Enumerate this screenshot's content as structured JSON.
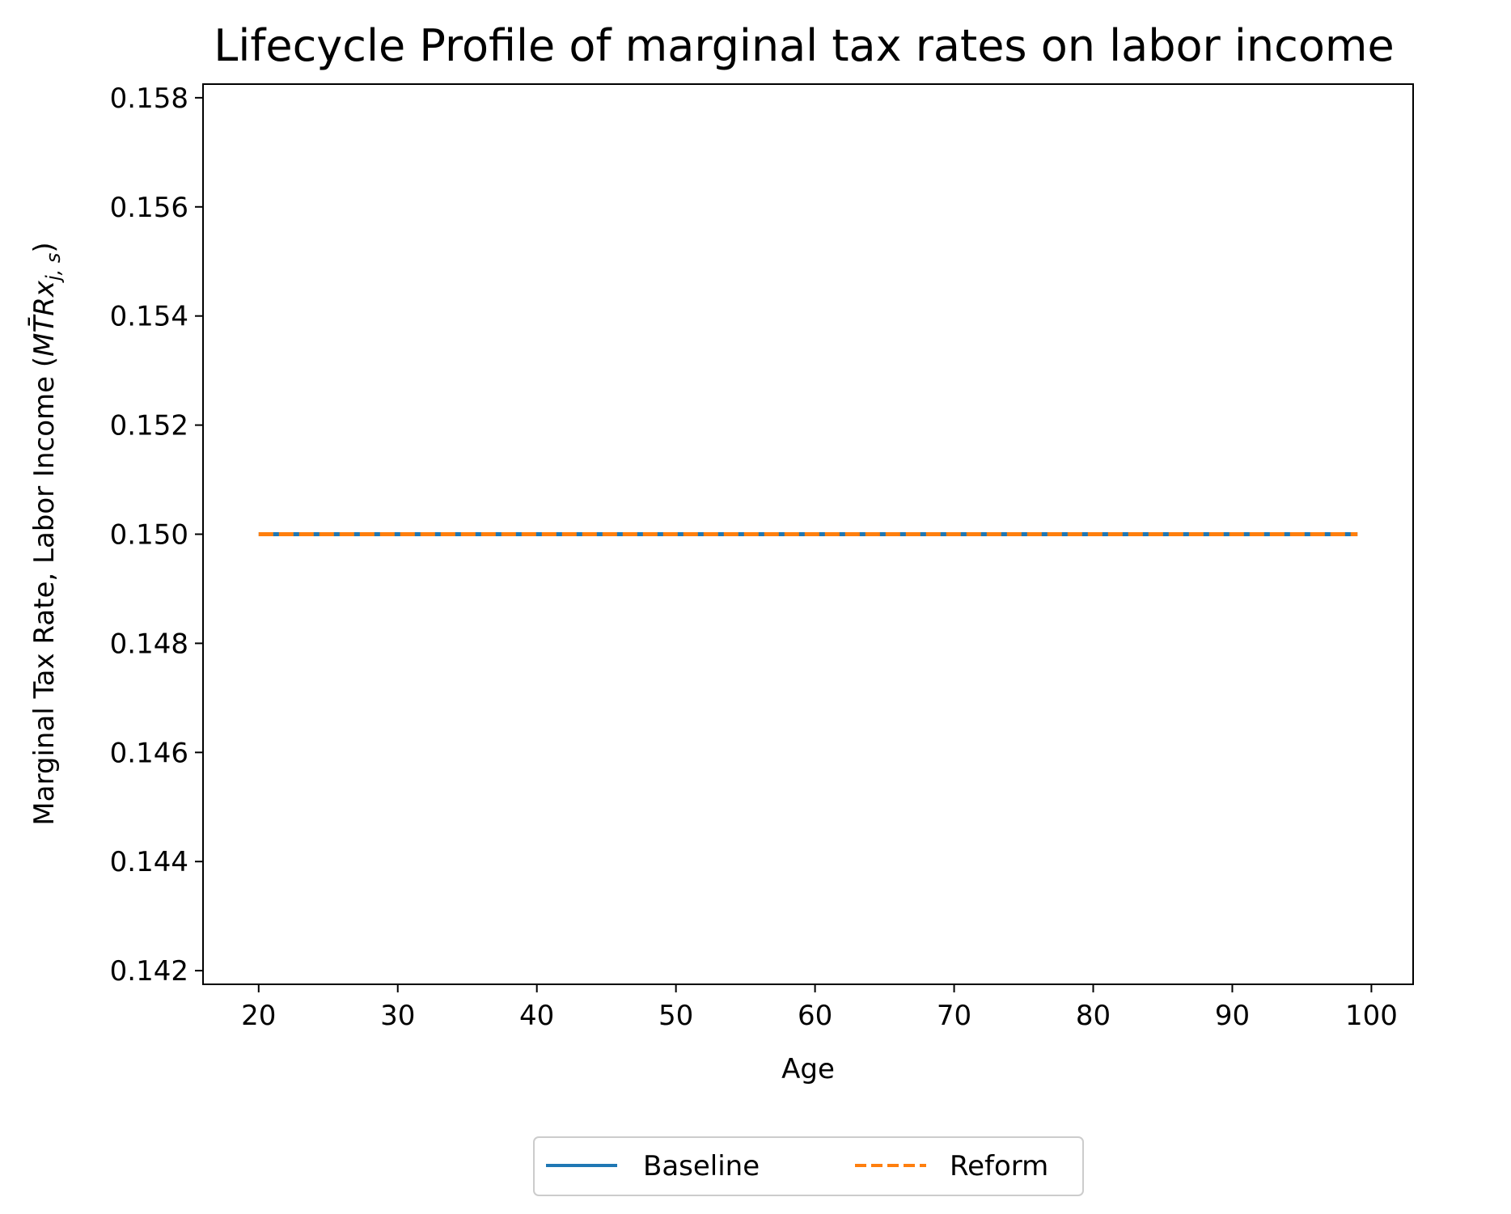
{
  "chart_data": {
    "type": "line",
    "title": "Lifecycle Profile of marginal tax rates on labor income",
    "xlabel": "Age",
    "ylabel_prefix": "Marginal Tax Rate, Labor Income (",
    "ylabel_math": "MT̄Rx",
    "ylabel_sub": "j, s",
    "ylabel_suffix": ")",
    "xlim": [
      16,
      103
    ],
    "ylim": [
      0.14175,
      0.15825
    ],
    "xticks": [
      20,
      30,
      40,
      50,
      60,
      70,
      80,
      90,
      100
    ],
    "xtick_labels": [
      "20",
      "30",
      "40",
      "50",
      "60",
      "70",
      "80",
      "90",
      "100"
    ],
    "yticks": [
      0.142,
      0.144,
      0.146,
      0.148,
      0.15,
      0.152,
      0.154,
      0.156,
      0.158
    ],
    "ytick_labels": [
      "0.142",
      "0.144",
      "0.146",
      "0.148",
      "0.150",
      "0.152",
      "0.154",
      "0.156",
      "0.158"
    ],
    "grid": false,
    "legend_position": "bottom-center",
    "series": [
      {
        "name": "Baseline",
        "style": "solid",
        "color": "#1f77b4",
        "x": [
          20,
          99
        ],
        "y": [
          0.15,
          0.15
        ]
      },
      {
        "name": "Reform",
        "style": "dashed",
        "color": "#ff7f0e",
        "x": [
          20,
          99
        ],
        "y": [
          0.15,
          0.15
        ]
      }
    ]
  }
}
